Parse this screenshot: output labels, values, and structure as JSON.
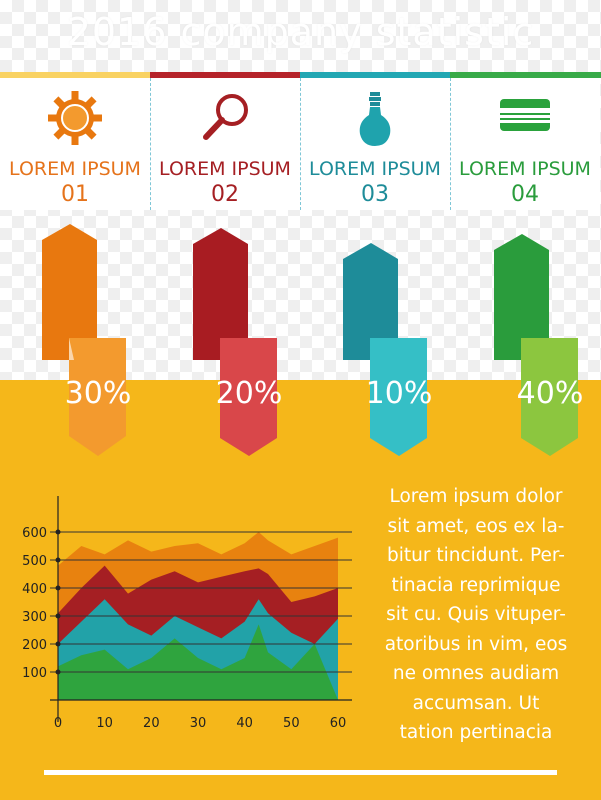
{
  "header": {
    "title": "2016 company statistic"
  },
  "colors": {
    "orange": "#e8780f",
    "red": "#a51f23",
    "teal": "#1fa3ad",
    "green": "#2aa23c",
    "background_yellow": "#f5b71a",
    "bar_yellow": "#f9d262",
    "bar_red": "#c0272d",
    "bar_teal": "#22a7b3",
    "bar_green": "#38aa48"
  },
  "cards": [
    {
      "label": "LOREM IPSUM",
      "number": "01",
      "icon": "gear-icon",
      "color": "#e5731b",
      "percent": "30%"
    },
    {
      "label": "LOREM IPSUM",
      "number": "02",
      "icon": "magnifier-icon",
      "color": "#a51f23",
      "percent": "20%"
    },
    {
      "label": "LOREM IPSUM",
      "number": "03",
      "icon": "lightbulb-icon",
      "color": "#1e8c99",
      "percent": "10%"
    },
    {
      "label": "LOREM IPSUM",
      "number": "04",
      "icon": "credit-card-icon",
      "color": "#2a9c3c",
      "percent": "40%"
    }
  ],
  "paragraph": "Lorem ipsum dolor sit amet, eos ex labitur tincidunt. Pertinacia reprimique sit cu. Quis vituperatoribus in vim, eos ne omnes audiam accumsan. Ut tation pertinacia",
  "paragraph_lines": [
    "Lorem ipsum dolor",
    "sit amet, eos ex la-",
    "bitur tincidunt. Per-",
    "tinacia reprimique",
    "sit cu. Quis vituper-",
    "atoribus in vim, eos",
    "ne omnes audiam",
    "accumsan. Ut",
    "tation pertinacia"
  ],
  "chart_data": {
    "type": "area",
    "x": [
      0,
      5,
      10,
      15,
      20,
      25,
      30,
      35,
      40,
      43,
      45,
      50,
      55,
      60
    ],
    "series": [
      {
        "color": "#e8820f",
        "values": [
          480,
          550,
          520,
          570,
          530,
          550,
          560,
          520,
          560,
          600,
          570,
          520,
          550,
          580
        ]
      },
      {
        "color": "#a51f23",
        "values": [
          310,
          400,
          480,
          380,
          430,
          460,
          420,
          440,
          460,
          470,
          450,
          350,
          370,
          400
        ]
      },
      {
        "color": "#22a2a8",
        "values": [
          200,
          280,
          360,
          270,
          230,
          300,
          260,
          220,
          280,
          360,
          310,
          240,
          200,
          290
        ]
      },
      {
        "color": "#2fa43e",
        "values": [
          120,
          160,
          180,
          110,
          150,
          220,
          150,
          110,
          150,
          270,
          170,
          110,
          200,
          0
        ]
      }
    ],
    "xlim": [
      0,
      60
    ],
    "ylim": [
      0,
      650
    ],
    "xticks": [
      0,
      10,
      20,
      30,
      40,
      50,
      60
    ],
    "yticks": [
      100,
      200,
      300,
      400,
      500,
      600
    ],
    "grid": true
  }
}
